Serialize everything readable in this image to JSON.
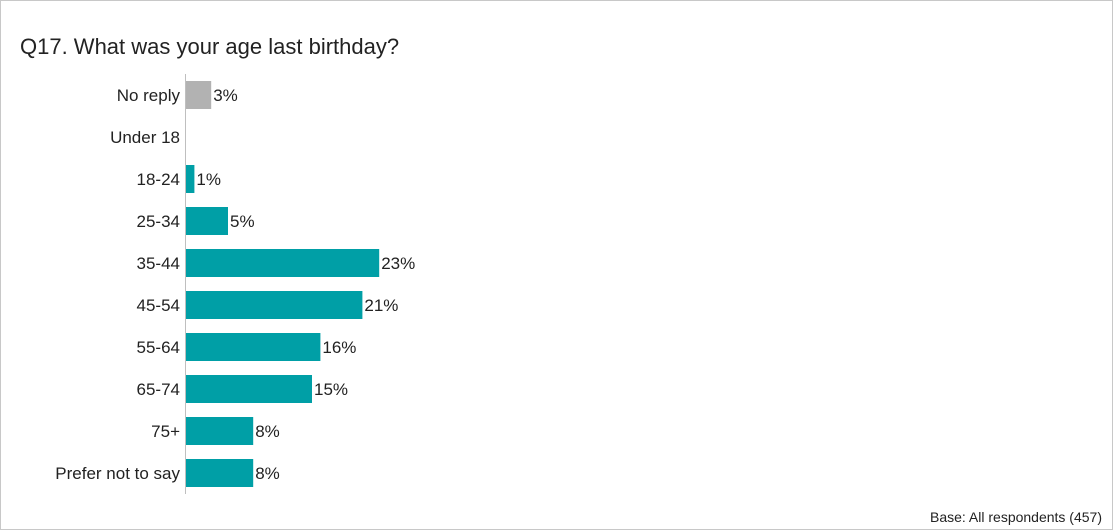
{
  "title": "Q17. What was your age last birthday?",
  "base_note": "Base: All respondents (457)",
  "colors": {
    "primary": "#009fa6",
    "no_reply": "#b2b2b2",
    "axis": "#bfbfbf",
    "text": "#222222"
  },
  "chart_data": {
    "type": "bar",
    "orientation": "horizontal",
    "title": "Q17. What was your age last birthday?",
    "categories": [
      "No reply",
      "Under 18",
      "18-24",
      "25-34",
      "35-44",
      "45-54",
      "55-64",
      "65-74",
      "75+",
      "Prefer not to say"
    ],
    "values": [
      3,
      0,
      1,
      5,
      23,
      21,
      16,
      15,
      8,
      8
    ],
    "value_labels": [
      "3%",
      "",
      "1%",
      "5%",
      "23%",
      "21%",
      "16%",
      "15%",
      "8%",
      "8%"
    ],
    "unit": "%",
    "grid": false,
    "legend": "none"
  }
}
